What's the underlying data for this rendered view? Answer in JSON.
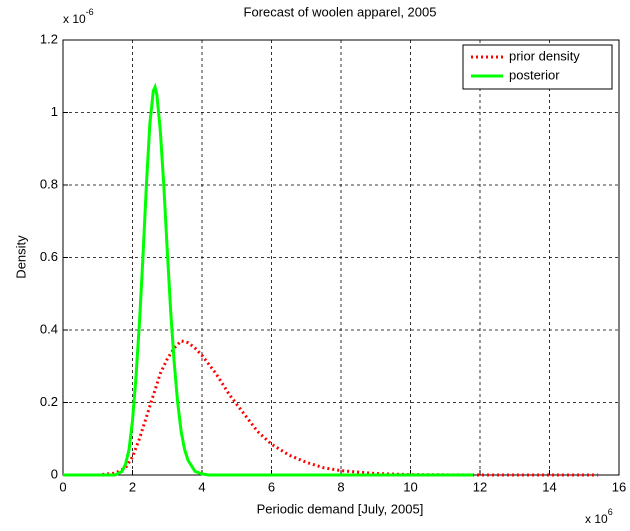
{
  "chart_data": {
    "type": "line",
    "title": "Forecast of woolen apparel, 2005",
    "x_label": "Periodic demand [July, 2005]",
    "y_label": "Density",
    "x_multiplier": {
      "base": "x 10",
      "exp": "6"
    },
    "y_multiplier": {
      "base": "x 10",
      "exp": "-6"
    },
    "xlim": [
      0,
      16
    ],
    "xticks": [
      0,
      2,
      4,
      6,
      8,
      10,
      12,
      14,
      16
    ],
    "ylim": [
      0,
      1.2
    ],
    "yticks": [
      0,
      0.2,
      0.4,
      0.6,
      0.8,
      1,
      1.2
    ],
    "grid": true,
    "legend": "top-right",
    "series": [
      {
        "name": "prior density",
        "color": "#ff0000",
        "dash": "dotted",
        "x": [
          0.7,
          1.0,
          1.5,
          1.8,
          2.0,
          2.2,
          2.4,
          2.6,
          2.8,
          3.0,
          3.2,
          3.4,
          3.6,
          3.8,
          4.0,
          4.4,
          4.8,
          5.2,
          5.6,
          6.0,
          6.5,
          7.0,
          7.5,
          8.0,
          9.0,
          10,
          12,
          14,
          15.4
        ],
        "values": [
          0,
          0,
          0.005,
          0.02,
          0.05,
          0.1,
          0.16,
          0.22,
          0.28,
          0.32,
          0.35,
          0.37,
          0.365,
          0.35,
          0.33,
          0.28,
          0.22,
          0.17,
          0.12,
          0.085,
          0.055,
          0.035,
          0.02,
          0.012,
          0.004,
          0.001,
          0,
          0,
          0
        ]
      },
      {
        "name": "posterior",
        "color": "#00ff00",
        "dash": "solid",
        "x": [
          0,
          1.5,
          1.7,
          1.8,
          1.9,
          2.0,
          2.1,
          2.2,
          2.3,
          2.4,
          2.5,
          2.6,
          2.65,
          2.7,
          2.8,
          2.9,
          3.0,
          3.1,
          3.2,
          3.3,
          3.4,
          3.5,
          3.6,
          3.8,
          4.0,
          4.2,
          6,
          8,
          10,
          11.8
        ],
        "values": [
          0,
          0,
          0.01,
          0.03,
          0.07,
          0.15,
          0.27,
          0.42,
          0.6,
          0.8,
          0.97,
          1.06,
          1.07,
          1.05,
          0.95,
          0.8,
          0.62,
          0.45,
          0.31,
          0.2,
          0.12,
          0.07,
          0.04,
          0.01,
          0.003,
          0,
          0,
          0,
          0,
          0
        ]
      }
    ]
  }
}
